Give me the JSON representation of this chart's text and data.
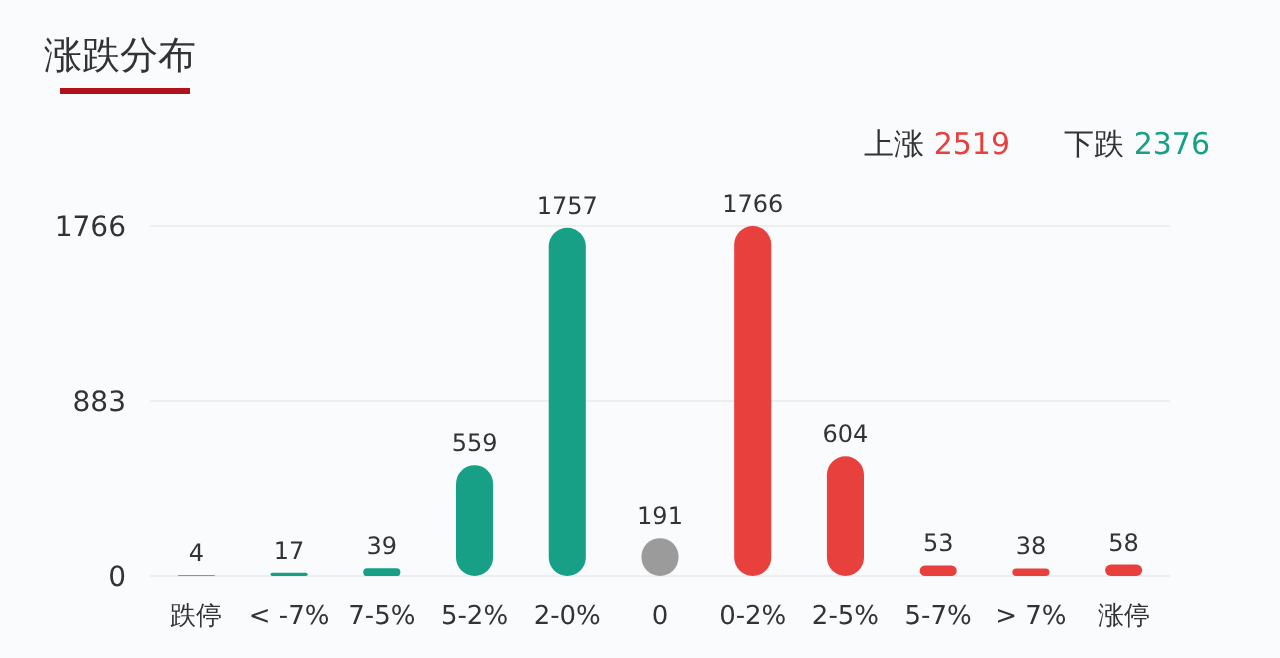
{
  "chart_data": {
    "type": "bar",
    "title": "涨跌分布",
    "categories": [
      "跌停",
      "< -7%",
      "7-5%",
      "5-2%",
      "2-0%",
      "0",
      "0-2%",
      "2-5%",
      "5-7%",
      "> 7%",
      "涨停"
    ],
    "values": [
      4,
      17,
      39,
      559,
      1757,
      191,
      1766,
      604,
      53,
      38,
      58
    ],
    "colors": [
      "#17a085",
      "#17a085",
      "#17a085",
      "#17a085",
      "#17a085",
      "#9b9b9b",
      "#e8403d",
      "#e8403d",
      "#e8403d",
      "#e8403d",
      "#e8403d"
    ],
    "ylim": [
      0,
      1766
    ],
    "yticks": [
      0,
      883,
      1766
    ],
    "grid": "y",
    "data_labels": true,
    "annotations": [
      "上涨 2519",
      "下跌 2376"
    ]
  }
}
